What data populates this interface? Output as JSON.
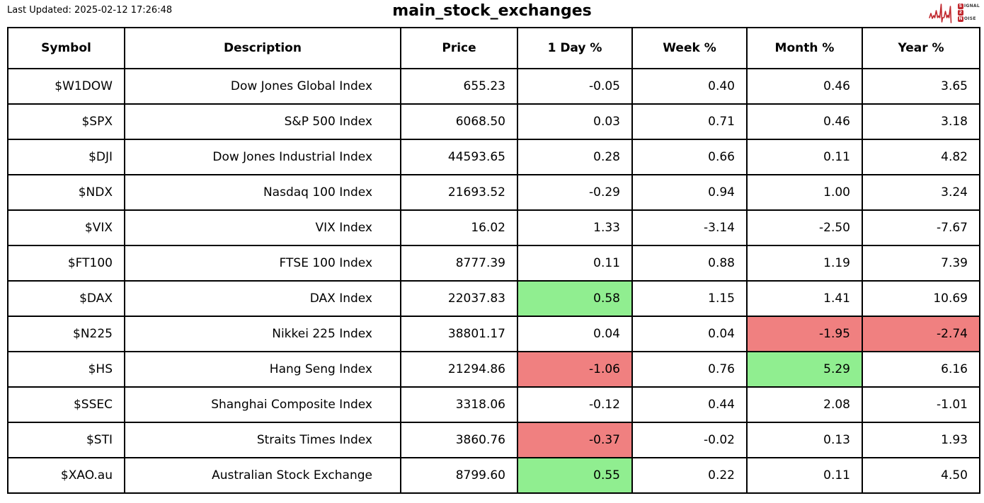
{
  "header": {
    "last_updated": "Last Updated: 2025-02-12 17:26:48",
    "title": "main_stock_exchanges",
    "logo": {
      "signal_initial": "S",
      "signal_rest": "IGNAL",
      "middle": "2",
      "noise_initial": "N",
      "noise_rest": "OISE",
      "red": "#c0272d"
    }
  },
  "chart_data": {
    "type": "table",
    "title": "main_stock_exchanges",
    "columns": [
      "Symbol",
      "Description",
      "Price",
      "1 Day %",
      "Week %",
      "Month %",
      "Year %"
    ],
    "rows": [
      {
        "symbol": "$W1DOW",
        "description": "Dow Jones Global Index",
        "price": "655.23",
        "day": "-0.05",
        "week": "0.40",
        "month": "0.46",
        "year": "3.65",
        "highlight": {}
      },
      {
        "symbol": "$SPX",
        "description": "S&P 500 Index",
        "price": "6068.50",
        "day": "0.03",
        "week": "0.71",
        "month": "0.46",
        "year": "3.18",
        "highlight": {}
      },
      {
        "symbol": "$DJI",
        "description": "Dow Jones Industrial Index",
        "price": "44593.65",
        "day": "0.28",
        "week": "0.66",
        "month": "0.11",
        "year": "4.82",
        "highlight": {}
      },
      {
        "symbol": "$NDX",
        "description": "Nasdaq 100 Index",
        "price": "21693.52",
        "day": "-0.29",
        "week": "0.94",
        "month": "1.00",
        "year": "3.24",
        "highlight": {}
      },
      {
        "symbol": "$VIX",
        "description": "VIX Index",
        "price": "16.02",
        "day": "1.33",
        "week": "-3.14",
        "month": "-2.50",
        "year": "-7.67",
        "highlight": {}
      },
      {
        "symbol": "$FT100",
        "description": "FTSE 100 Index",
        "price": "8777.39",
        "day": "0.11",
        "week": "0.88",
        "month": "1.19",
        "year": "7.39",
        "highlight": {}
      },
      {
        "symbol": "$DAX",
        "description": "DAX Index",
        "price": "22037.83",
        "day": "0.58",
        "week": "1.15",
        "month": "1.41",
        "year": "10.69",
        "highlight": {
          "day": "positive"
        }
      },
      {
        "symbol": "$N225",
        "description": "Nikkei 225 Index",
        "price": "38801.17",
        "day": "0.04",
        "week": "0.04",
        "month": "-1.95",
        "year": "-2.74",
        "highlight": {
          "month": "negative",
          "year": "negative"
        }
      },
      {
        "symbol": "$HS",
        "description": "Hang Seng Index",
        "price": "21294.86",
        "day": "-1.06",
        "week": "0.76",
        "month": "5.29",
        "year": "6.16",
        "highlight": {
          "day": "negative",
          "month": "positive"
        }
      },
      {
        "symbol": "$SSEC",
        "description": "Shanghai Composite Index",
        "price": "3318.06",
        "day": "-0.12",
        "week": "0.44",
        "month": "2.08",
        "year": "-1.01",
        "highlight": {}
      },
      {
        "symbol": "$STI",
        "description": "Straits Times Index",
        "price": "3860.76",
        "day": "-0.37",
        "week": "-0.02",
        "month": "0.13",
        "year": "1.93",
        "highlight": {
          "day": "negative"
        }
      },
      {
        "symbol": "$XAO.au",
        "description": "Australian Stock Exchange",
        "price": "8799.60",
        "day": "0.55",
        "week": "0.22",
        "month": "0.11",
        "year": "4.50",
        "highlight": {
          "day": "positive"
        }
      }
    ]
  },
  "colors": {
    "positive": "#90ee90",
    "negative": "#f08080",
    "border": "#000000",
    "background": "#ffffff",
    "logo_red": "#c0272d"
  }
}
